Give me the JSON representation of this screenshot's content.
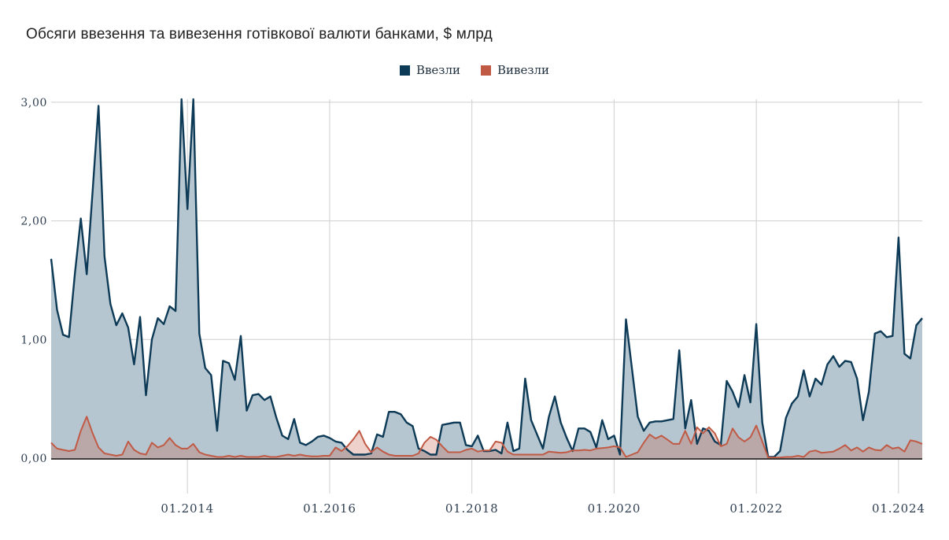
{
  "title": "Обсяги ввезення та вивезення готівкової валюти банками, $ млрд",
  "legend": [
    {
      "label": "Ввезли",
      "color": "#0d3a56"
    },
    {
      "label": "Вивезли",
      "color": "#c05a45"
    }
  ],
  "chart_data": {
    "type": "area",
    "title": "Обсяги ввезення та вивезення готівкової валюти банками, $ млрд",
    "x_interval": "monthly",
    "x_start": "02.2012",
    "x_end": "05.2024",
    "x_tick_labels": [
      "01.2014",
      "01.2016",
      "01.2018",
      "01.2020",
      "01.2022",
      "01.2024"
    ],
    "x_tick_month_indices": [
      23,
      47,
      71,
      95,
      119,
      143
    ],
    "y_tick_labels": [
      "0,00",
      "1,00",
      "2,00",
      "3,00"
    ],
    "y_tick_values": [
      0,
      1,
      2,
      3
    ],
    "ylim": [
      0,
      3
    ],
    "grid": true,
    "legend_position": "top-center",
    "values_above_ymax_clipped": true,
    "series": [
      {
        "name": "Ввезли",
        "line_color": "#0d3a56",
        "fill_color": "#b6c6d0",
        "values": [
          1.68,
          1.25,
          1.04,
          1.02,
          1.55,
          2.02,
          1.55,
          2.25,
          2.97,
          1.7,
          1.3,
          1.12,
          1.22,
          1.1,
          0.79,
          1.19,
          0.53,
          1.0,
          1.18,
          1.13,
          1.28,
          1.24,
          3.1,
          2.1,
          3.1,
          1.05,
          0.76,
          0.7,
          0.23,
          0.82,
          0.8,
          0.66,
          1.03,
          0.4,
          0.53,
          0.54,
          0.49,
          0.52,
          0.34,
          0.19,
          0.16,
          0.33,
          0.13,
          0.11,
          0.14,
          0.18,
          0.19,
          0.17,
          0.14,
          0.13,
          0.07,
          0.03,
          0.03,
          0.03,
          0.04,
          0.2,
          0.18,
          0.39,
          0.39,
          0.37,
          0.3,
          0.27,
          0.08,
          0.06,
          0.03,
          0.03,
          0.28,
          0.29,
          0.3,
          0.3,
          0.11,
          0.1,
          0.19,
          0.06,
          0.06,
          0.07,
          0.04,
          0.3,
          0.06,
          0.08,
          0.67,
          0.32,
          0.2,
          0.08,
          0.35,
          0.52,
          0.3,
          0.17,
          0.06,
          0.25,
          0.25,
          0.22,
          0.09,
          0.32,
          0.16,
          0.19,
          0.03,
          1.17,
          0.76,
          0.35,
          0.23,
          0.3,
          0.31,
          0.31,
          0.32,
          0.33,
          0.91,
          0.25,
          0.49,
          0.12,
          0.25,
          0.23,
          0.14,
          0.11,
          0.65,
          0.56,
          0.43,
          0.7,
          0.47,
          1.13,
          0.3,
          0.01,
          0.01,
          0.06,
          0.34,
          0.46,
          0.52,
          0.74,
          0.52,
          0.67,
          0.62,
          0.79,
          0.86,
          0.77,
          0.82,
          0.81,
          0.67,
          0.32,
          0.56,
          1.05,
          1.07,
          1.02,
          1.03,
          1.86,
          0.88,
          0.84,
          1.12,
          1.18
        ]
      },
      {
        "name": "Вивезли",
        "line_color": "#c05a45",
        "fill_color": "rgba(197,90,69,0.28)",
        "values": [
          0.13,
          0.08,
          0.07,
          0.06,
          0.07,
          0.23,
          0.35,
          0.21,
          0.09,
          0.04,
          0.03,
          0.02,
          0.03,
          0.14,
          0.07,
          0.04,
          0.03,
          0.13,
          0.09,
          0.11,
          0.17,
          0.11,
          0.08,
          0.08,
          0.12,
          0.05,
          0.03,
          0.02,
          0.01,
          0.01,
          0.02,
          0.01,
          0.02,
          0.01,
          0.01,
          0.01,
          0.02,
          0.01,
          0.01,
          0.02,
          0.03,
          0.02,
          0.03,
          0.02,
          0.015,
          0.015,
          0.02,
          0.02,
          0.09,
          0.06,
          0.1,
          0.16,
          0.23,
          0.12,
          0.05,
          0.09,
          0.055,
          0.03,
          0.02,
          0.02,
          0.02,
          0.02,
          0.04,
          0.13,
          0.18,
          0.155,
          0.1,
          0.05,
          0.05,
          0.05,
          0.07,
          0.08,
          0.055,
          0.065,
          0.065,
          0.14,
          0.13,
          0.055,
          0.03,
          0.03,
          0.03,
          0.03,
          0.03,
          0.03,
          0.055,
          0.05,
          0.045,
          0.05,
          0.065,
          0.065,
          0.07,
          0.065,
          0.08,
          0.085,
          0.09,
          0.1,
          0.09,
          0.01,
          0.03,
          0.05,
          0.13,
          0.2,
          0.165,
          0.19,
          0.155,
          0.12,
          0.12,
          0.23,
          0.12,
          0.26,
          0.21,
          0.26,
          0.21,
          0.1,
          0.12,
          0.25,
          0.175,
          0.14,
          0.175,
          0.275,
          0.14,
          0.005,
          0.005,
          0.005,
          0.01,
          0.01,
          0.02,
          0.01,
          0.055,
          0.065,
          0.045,
          0.05,
          0.055,
          0.08,
          0.11,
          0.065,
          0.09,
          0.055,
          0.09,
          0.07,
          0.065,
          0.11,
          0.08,
          0.09,
          0.055,
          0.15,
          0.14,
          0.12
        ]
      }
    ],
    "colors": {
      "gridline": "#cfcfcf",
      "axis_baseline": "#403c3c",
      "tick_label": "#2e3e50",
      "background": "#ffffff"
    }
  }
}
